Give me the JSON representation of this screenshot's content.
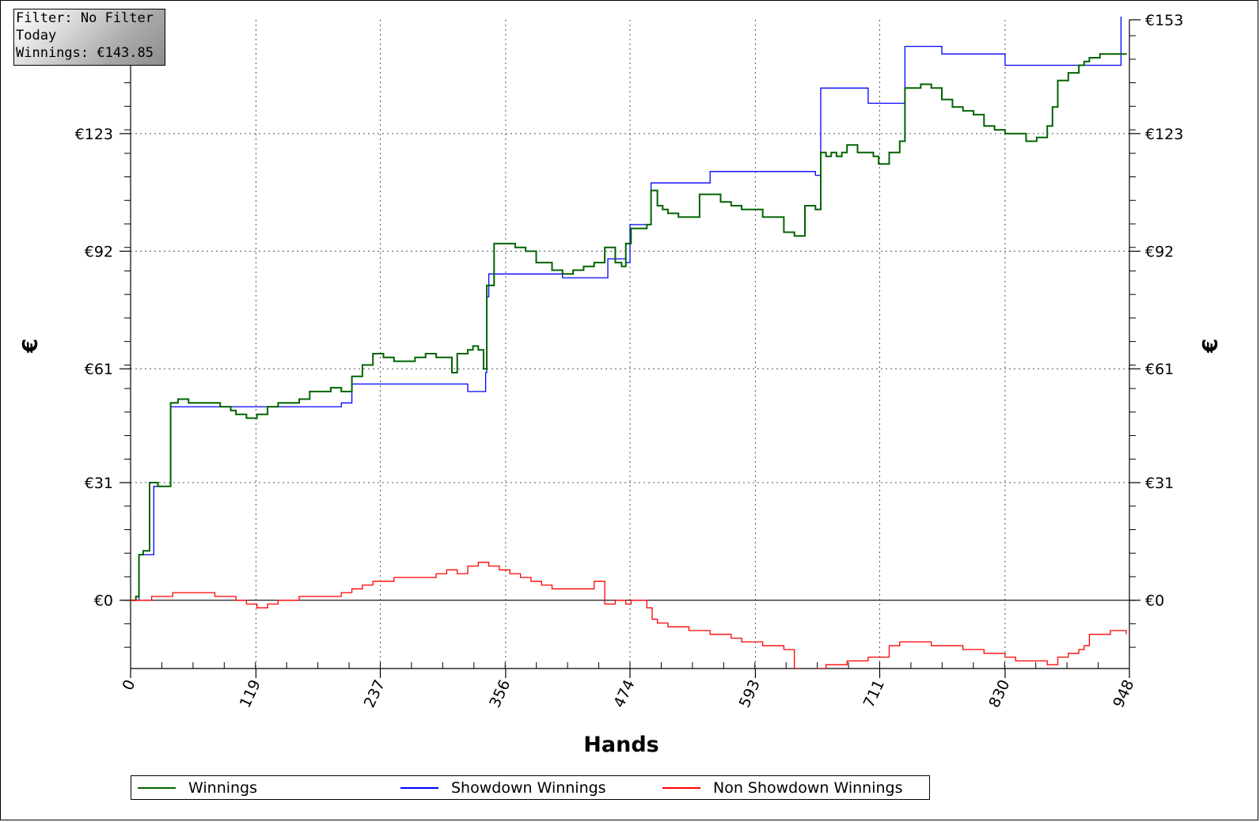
{
  "info_box": {
    "filter": "Filter: No Filter",
    "period": "Today",
    "winnings": "Winnings: €143.85"
  },
  "chart_data": {
    "type": "line",
    "xlabel": "Hands",
    "ylabel_left": "€",
    "ylabel_right": "€",
    "x_ticks": [
      "0",
      "119",
      "237",
      "356",
      "474",
      "593",
      "711",
      "830",
      "948"
    ],
    "y_ticks": [
      "€0",
      "€31",
      "€61",
      "€92",
      "€123",
      "€153"
    ],
    "xlim": [
      0,
      948
    ],
    "ylim": [
      -18,
      153
    ],
    "grid": true,
    "legend_position": "bottom",
    "colors": {
      "Winnings": "#006400",
      "Showdown Winnings": "#0000ff",
      "Non Showdown Winnings": "#ff0000"
    },
    "series": [
      {
        "name": "Winnings",
        "x": [
          0,
          5,
          8,
          12,
          15,
          18,
          22,
          26,
          30,
          35,
          38,
          45,
          55,
          70,
          85,
          95,
          100,
          110,
          120,
          130,
          140,
          150,
          160,
          170,
          180,
          190,
          200,
          210,
          220,
          230,
          240,
          250,
          260,
          270,
          280,
          290,
          300,
          305,
          310,
          320,
          325,
          330,
          335,
          338,
          345,
          355,
          365,
          375,
          385,
          400,
          410,
          420,
          430,
          440,
          450,
          460,
          466,
          470,
          475,
          480,
          490,
          494,
          500,
          505,
          510,
          520,
          530,
          540,
          550,
          560,
          570,
          580,
          590,
          600,
          610,
          620,
          630,
          640,
          650,
          655,
          660,
          665,
          670,
          675,
          680,
          690,
          695,
          700,
          705,
          710,
          720,
          730,
          735,
          740,
          750,
          760,
          770,
          780,
          790,
          800,
          810,
          820,
          830,
          840,
          850,
          860,
          870,
          875,
          880,
          890,
          900,
          905,
          910,
          920,
          930,
          940,
          945
        ],
        "y": [
          0,
          1,
          12,
          13,
          13,
          31,
          31,
          30,
          30,
          30,
          52,
          53,
          52,
          52,
          51,
          50,
          49,
          48,
          49,
          51,
          52,
          52,
          53,
          55,
          55,
          56,
          55,
          59,
          62,
          65,
          64,
          63,
          63,
          64,
          65,
          64,
          64,
          60,
          65,
          66,
          67,
          66,
          61,
          83,
          94,
          94,
          93,
          92,
          89,
          87,
          86,
          87,
          88,
          89,
          93,
          89,
          88,
          94,
          98,
          98,
          99,
          108,
          104,
          103,
          102,
          101,
          101,
          107,
          107,
          105,
          104,
          103,
          103,
          101,
          101,
          97,
          96,
          104,
          103,
          118,
          117,
          118,
          117,
          118,
          120,
          118,
          118,
          118,
          117,
          115,
          118,
          121,
          135,
          135,
          136,
          135,
          132,
          130,
          129,
          128,
          125,
          124,
          123,
          123,
          121,
          122,
          125,
          130,
          137,
          139,
          141,
          142,
          143,
          144,
          144,
          144,
          143.85
        ]
      },
      {
        "name": "Showdown Winnings",
        "x": [
          0,
          5,
          8,
          18,
          22,
          35,
          38,
          45,
          100,
          160,
          200,
          210,
          230,
          300,
          320,
          333,
          337,
          338,
          340,
          360,
          380,
          400,
          410,
          440,
          450,
          453,
          460,
          470,
          474,
          490,
          494,
          500,
          520,
          550,
          600,
          650,
          655,
          670,
          680,
          700,
          710,
          730,
          735,
          770,
          800,
          830,
          860,
          870,
          875,
          880,
          892,
          940
        ],
        "y": [
          0,
          0,
          12,
          12,
          30,
          30,
          51,
          51,
          51,
          51,
          52,
          57,
          57,
          57,
          55,
          55,
          60,
          80,
          86,
          86,
          86,
          86,
          85,
          85,
          85,
          90,
          90,
          89,
          99,
          99,
          110,
          110,
          110,
          113,
          113,
          112,
          135,
          135,
          135,
          131,
          131,
          131,
          146,
          144,
          144,
          141,
          141,
          141,
          141,
          141,
          141,
          160
        ]
      },
      {
        "name": "Non Showdown Winnings",
        "x": [
          0,
          20,
          40,
          60,
          80,
          100,
          110,
          120,
          130,
          140,
          160,
          180,
          200,
          210,
          220,
          230,
          250,
          270,
          290,
          300,
          310,
          320,
          330,
          340,
          350,
          360,
          370,
          380,
          390,
          400,
          420,
          440,
          450,
          460,
          470,
          475,
          480,
          490,
          495,
          500,
          510,
          530,
          550,
          570,
          580,
          590,
          600,
          610,
          620,
          630,
          635,
          640,
          650,
          660,
          670,
          680,
          690,
          700,
          710,
          720,
          730,
          740,
          750,
          760,
          770,
          780,
          790,
          800,
          810,
          820,
          830,
          840,
          850,
          860,
          870,
          880,
          890,
          900,
          905,
          910,
          920,
          930,
          940,
          945
        ],
        "y": [
          0,
          1,
          2,
          2,
          1,
          0,
          -1,
          -2,
          -1,
          0,
          1,
          1,
          2,
          3,
          4,
          5,
          6,
          6,
          7,
          8,
          7,
          9,
          10,
          9,
          8,
          7,
          6,
          5,
          4,
          3,
          3,
          5,
          -1,
          0,
          -1,
          0,
          0,
          -2,
          -5,
          -6,
          -7,
          -8,
          -9,
          -10,
          -11,
          -11,
          -12,
          -12,
          -13,
          -18,
          -19,
          -19,
          -18,
          -17,
          -17,
          -16,
          -16,
          -15,
          -15,
          -12,
          -11,
          -11,
          -11,
          -12,
          -12,
          -12,
          -13,
          -13,
          -14,
          -14,
          -15,
          -16,
          -16,
          -16,
          -17,
          -15,
          -14,
          -13,
          -12,
          -9,
          -9,
          -8,
          -8,
          -9
        ]
      }
    ]
  }
}
